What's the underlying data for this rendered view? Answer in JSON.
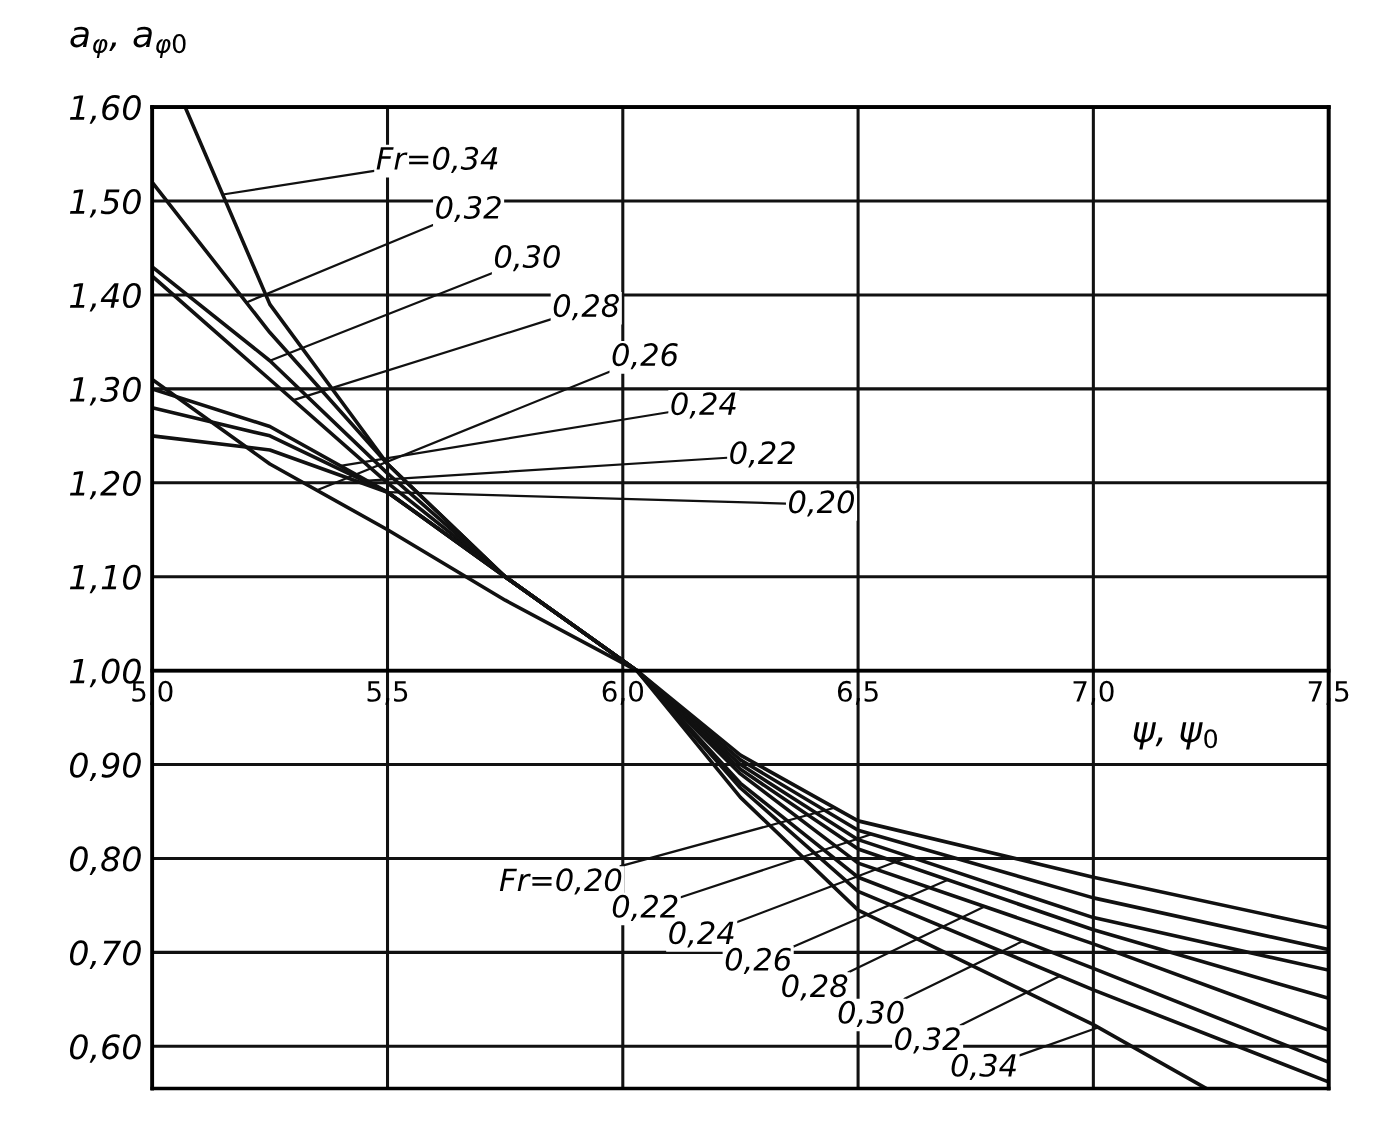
{
  "chart_data": {
    "type": "line",
    "xlabel": "ψ, ψ$_{0}$",
    "ylabel": "a$_{φ}$, a$_{φ0}$",
    "xlim": [
      5.0,
      7.5
    ],
    "ylim": [
      0.555,
      1.6
    ],
    "xticks": [
      {
        "value": 5.0,
        "label": "5,0"
      },
      {
        "value": 5.5,
        "label": "5,5"
      },
      {
        "value": 6.0,
        "label": "6,0"
      },
      {
        "value": 6.5,
        "label": "6,5"
      },
      {
        "value": 7.0,
        "label": "7,0"
      },
      {
        "value": 7.5,
        "label": "7,5"
      }
    ],
    "yticks": [
      {
        "value": 0.6,
        "label": "0,60"
      },
      {
        "value": 0.7,
        "label": "0,70"
      },
      {
        "value": 0.8,
        "label": "0,80"
      },
      {
        "value": 0.9,
        "label": "0,90"
      },
      {
        "value": 1.0,
        "label": "1,00"
      },
      {
        "value": 1.1,
        "label": "1,10"
      },
      {
        "value": 1.2,
        "label": "1,20"
      },
      {
        "value": 1.3,
        "label": "1,30"
      },
      {
        "value": 1.4,
        "label": "1,40"
      },
      {
        "value": 1.5,
        "label": "1,50"
      },
      {
        "value": 1.6,
        "label": "1,60"
      }
    ],
    "grid": true,
    "legend": false,
    "marker": "none",
    "line_style": "solid",
    "series": [
      {
        "color": "#111111",
        "x": [
          5.07,
          5.25,
          5.5,
          5.75,
          6.03,
          6.25,
          6.5,
          7.0,
          7.24
        ],
        "values": [
          1.6,
          1.39,
          1.22,
          1.1,
          1.0,
          0.865,
          0.745,
          0.623,
          0.555
        ]
      },
      {
        "color": "#111111",
        "x": [
          5.0,
          5.25,
          5.5,
          5.75,
          6.03,
          6.25,
          6.5,
          7.0,
          7.5
        ],
        "values": [
          1.52,
          1.36,
          1.22,
          1.1,
          1.0,
          0.875,
          0.765,
          0.66,
          0.562
        ]
      },
      {
        "color": "#111111",
        "x": [
          5.0,
          5.25,
          5.5,
          5.75,
          6.03,
          6.25,
          6.5,
          7.0,
          7.5
        ],
        "values": [
          1.43,
          1.33,
          1.21,
          1.1,
          1.0,
          0.88,
          0.78,
          0.683,
          0.583
        ]
      },
      {
        "color": "#111111",
        "x": [
          5.0,
          5.25,
          5.5,
          5.75,
          6.03,
          6.25,
          6.5,
          7.0,
          7.5
        ],
        "values": [
          1.42,
          1.31,
          1.2,
          1.1,
          1.0,
          0.89,
          0.795,
          0.709,
          0.617
        ]
      },
      {
        "color": "#111111",
        "x": [
          5.0,
          5.25,
          5.5,
          5.75,
          6.03,
          6.25,
          6.5,
          7.0,
          7.5
        ],
        "values": [
          1.31,
          1.22,
          1.15,
          1.075,
          1.0,
          0.895,
          0.81,
          0.724,
          0.651
        ]
      },
      {
        "color": "#111111",
        "x": [
          5.0,
          5.25,
          5.5,
          5.75,
          6.03,
          6.25,
          6.5,
          7.0,
          7.5
        ],
        "values": [
          1.3,
          1.26,
          1.19,
          1.1,
          1.0,
          0.9,
          0.82,
          0.737,
          0.681
        ]
      },
      {
        "color": "#111111",
        "x": [
          5.0,
          5.25,
          5.5,
          5.75,
          6.03,
          6.25,
          6.5,
          7.0,
          7.5
        ],
        "values": [
          1.28,
          1.25,
          1.19,
          1.1,
          1.0,
          0.905,
          0.83,
          0.758,
          0.703
        ]
      },
      {
        "color": "#111111",
        "x": [
          5.0,
          5.25,
          5.5,
          5.75,
          6.03,
          6.25,
          6.5,
          7.0,
          7.5
        ],
        "values": [
          1.25,
          1.235,
          1.19,
          1.1,
          1.0,
          0.91,
          0.84,
          0.78,
          0.726
        ]
      }
    ],
    "annotations": [
      {
        "text": "Fr=0,34",
        "x": 5.15,
        "y": 1.507
      },
      {
        "text": "0,32",
        "x": 5.2,
        "y": 1.392
      },
      {
        "text": "0,30",
        "x": 5.25,
        "y": 1.33
      },
      {
        "text": "0,28",
        "x": 5.3,
        "y": 1.288
      },
      {
        "text": "0,26",
        "x": 5.35,
        "y": 1.192
      },
      {
        "text": "0,24",
        "x": 5.4,
        "y": 1.218
      },
      {
        "text": "0,22",
        "x": 5.45,
        "y": 1.202
      },
      {
        "text": "0,20",
        "x": 5.5,
        "y": 1.19
      },
      {
        "text": "Fr=0,20",
        "x": 6.45,
        "y": 0.854
      },
      {
        "text": "0,22",
        "x": 6.53,
        "y": 0.826
      },
      {
        "text": "0,24",
        "x": 6.61,
        "y": 0.802
      },
      {
        "text": "0,26",
        "x": 6.69,
        "y": 0.777
      },
      {
        "text": "0,28",
        "x": 6.77,
        "y": 0.749
      },
      {
        "text": "0,30",
        "x": 6.85,
        "y": 0.712
      },
      {
        "text": "0,32",
        "x": 6.93,
        "y": 0.675
      },
      {
        "text": "0,34",
        "x": 7.01,
        "y": 0.62
      }
    ]
  }
}
